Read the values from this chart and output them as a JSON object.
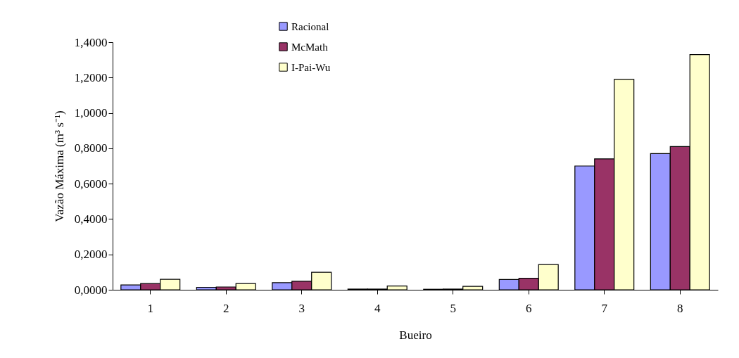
{
  "chart_data": {
    "type": "bar",
    "xlabel": "Bueiro",
    "ylabel": "Vazão Máxima (m³ s⁻¹)",
    "categories": [
      "1",
      "2",
      "3",
      "4",
      "5",
      "6",
      "7",
      "8"
    ],
    "series": [
      {
        "name": "Racional",
        "color": "#9999ff",
        "values": [
          0.027,
          0.014,
          0.04,
          0.004,
          0.003,
          0.058,
          0.7,
          0.77
        ]
      },
      {
        "name": "McMath",
        "color": "#993366",
        "values": [
          0.035,
          0.016,
          0.048,
          0.004,
          0.004,
          0.065,
          0.74,
          0.81
        ]
      },
      {
        "name": "I-Pai-Wu",
        "color": "#ffffcc",
        "values": [
          0.059,
          0.035,
          0.099,
          0.021,
          0.019,
          0.143,
          1.19,
          1.33
        ]
      }
    ],
    "ylim": [
      0,
      1.4
    ],
    "yticks": [
      {
        "value": 0,
        "label": "0,0000"
      },
      {
        "value": 0.2,
        "label": "0,2000"
      },
      {
        "value": 0.4,
        "label": "0,4000"
      },
      {
        "value": 0.6,
        "label": "0,6000"
      },
      {
        "value": 0.8,
        "label": "0,8000"
      },
      {
        "value": 1.0,
        "label": "1,0000"
      },
      {
        "value": 1.2,
        "label": "1,2000"
      },
      {
        "value": 1.4,
        "label": "1,4000"
      }
    ],
    "grid": false,
    "legend": "top"
  }
}
